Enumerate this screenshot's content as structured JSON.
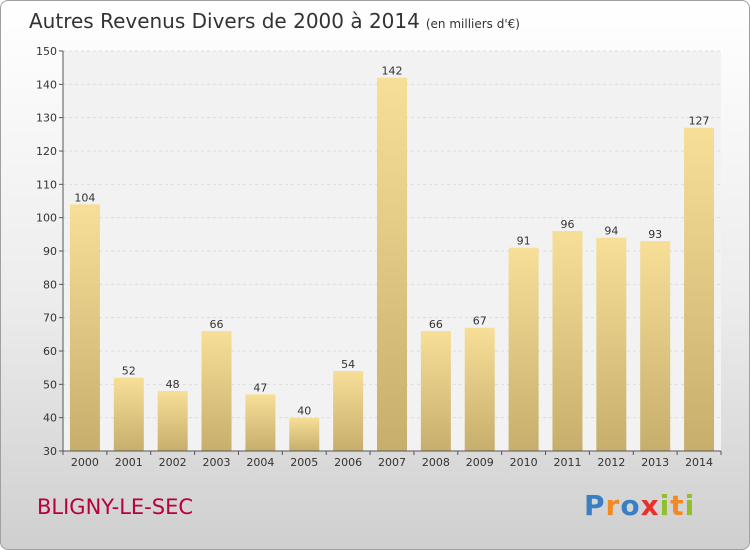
{
  "header": {
    "title": "Autres Revenus Divers de 2000 à 2014",
    "unit": "(en milliers d'€)"
  },
  "footer": {
    "place": "BLIGNY-LE-SEC",
    "logo": [
      "P",
      "r",
      "o",
      "x",
      "i",
      "t",
      "i"
    ]
  },
  "colors": {
    "place": "#b8003a",
    "bar_light": "#f7df98",
    "bar_dark": "#c7ae6c",
    "logo": [
      "#3a7fc4",
      "#f08a24",
      "#3a7fc4",
      "#e9312b",
      "#8fbf2a",
      "#f08a24",
      "#8fbf2a"
    ]
  },
  "chart_data": {
    "type": "bar",
    "categories": [
      "2000",
      "2001",
      "2002",
      "2003",
      "2004",
      "2005",
      "2006",
      "2007",
      "2008",
      "2009",
      "2010",
      "2011",
      "2012",
      "2013",
      "2014"
    ],
    "values": [
      104,
      52,
      48,
      66,
      47,
      40,
      54,
      142,
      66,
      67,
      91,
      96,
      94,
      93,
      127
    ],
    "ylim": [
      30,
      150
    ],
    "yticks": [
      30,
      40,
      50,
      60,
      70,
      80,
      90,
      100,
      110,
      120,
      130,
      140,
      150
    ],
    "grid": true
  }
}
